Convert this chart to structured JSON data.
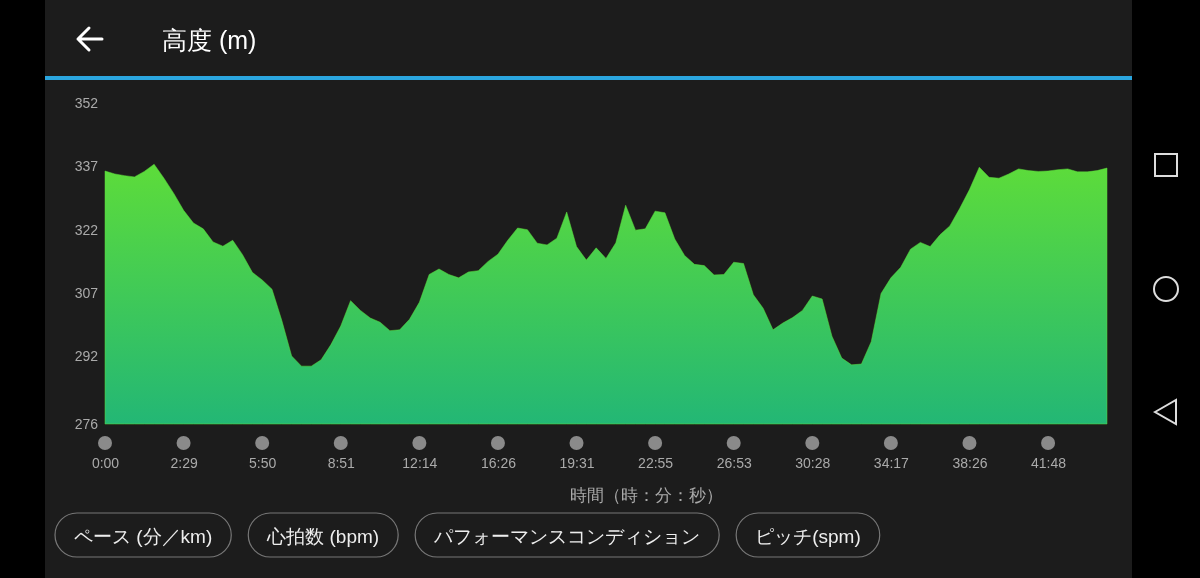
{
  "chart_data": {
    "type": "area",
    "title": "高度 (m)",
    "xlabel": "時間（時：分：秒）",
    "categories": [
      "0:00",
      null,
      null,
      null,
      null,
      null,
      null,
      null,
      "2:29",
      null,
      null,
      null,
      null,
      null,
      null,
      null,
      "5:50",
      null,
      null,
      null,
      null,
      null,
      null,
      null,
      "8:51",
      null,
      null,
      null,
      null,
      null,
      null,
      null,
      "12:14",
      null,
      null,
      null,
      null,
      null,
      null,
      null,
      "16:26",
      null,
      null,
      null,
      null,
      null,
      null,
      null,
      "19:31",
      null,
      null,
      null,
      null,
      null,
      null,
      null,
      "22:55",
      null,
      null,
      null,
      null,
      null,
      null,
      null,
      "26:53",
      null,
      null,
      null,
      null,
      null,
      null,
      null,
      "30:28",
      null,
      null,
      null,
      null,
      null,
      null,
      null,
      "34:17",
      null,
      null,
      null,
      null,
      null,
      null,
      null,
      "38:26",
      null,
      null,
      null,
      null,
      null,
      null,
      null,
      "41:48",
      null,
      null,
      null,
      null,
      null,
      null
    ],
    "ylim": [
      276,
      352
    ],
    "yticks": [
      276,
      292,
      307,
      322,
      337,
      352
    ],
    "grid": false,
    "annotations": [
      "ペース (分／km)",
      "心拍数 (bpm)",
      "パフォーマンスコンディション",
      "ピッチ(spm)"
    ],
    "series": [
      {
        "color": "#5ddc3a",
        "values": [
          335.9,
          335.2,
          334.8,
          334.5,
          335.8,
          337.5,
          334.2,
          330.6,
          326.6,
          323.6,
          322.2,
          319.1,
          318.1,
          319.5,
          316.1,
          311.9,
          310.1,
          307.9,
          300.5,
          292.1,
          289.7,
          289.7,
          291.2,
          294.8,
          299.2,
          305.2,
          302.9,
          301.1,
          300.1,
          298.1,
          298.3,
          300.8,
          304.8,
          311.4,
          312.7,
          311.4,
          310.6,
          312.0,
          312.3,
          314.5,
          316.2,
          319.5,
          322.4,
          322.0,
          318.8,
          318.4,
          320.0,
          326.2,
          318.0,
          314.8,
          317.7,
          315.2,
          318.9,
          327.8,
          321.9,
          322.2,
          326.4,
          326.0,
          319.8,
          315.9,
          313.8,
          313.5,
          311.3,
          311.4,
          314.3,
          314.0,
          306.6,
          303.4,
          298.3,
          299.9,
          301.2,
          302.9,
          306.3,
          305.6,
          296.8,
          291.6,
          290.0,
          290.2,
          295.5,
          306.9,
          310.6,
          313.1,
          317.4,
          319.0,
          318.0,
          320.8,
          322.9,
          327.0,
          331.5,
          336.8,
          334.4,
          334.2,
          335.2,
          336.4,
          336.0,
          335.8,
          335.9,
          336.2,
          336.4,
          335.7,
          335.7,
          336.0,
          336.6
        ]
      }
    ]
  }
}
